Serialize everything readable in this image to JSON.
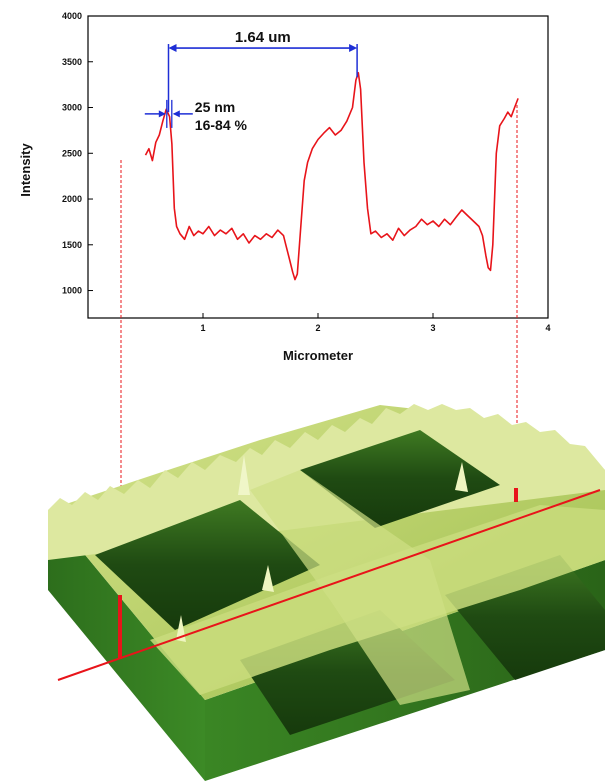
{
  "chart_data": {
    "type": "line",
    "xlabel": "Micrometer",
    "ylabel": "Intensity",
    "xlim": [
      0,
      4
    ],
    "ylim": [
      700,
      4000
    ],
    "x_ticks": [
      1,
      2,
      3,
      4
    ],
    "y_ticks": [
      1000,
      1500,
      2000,
      2500,
      3000,
      3500,
      4000
    ],
    "grid": false,
    "series": [
      {
        "color": "#e8141a",
        "points": [
          [
            0.5,
            2480
          ],
          [
            0.53,
            2550
          ],
          [
            0.56,
            2420
          ],
          [
            0.59,
            2620
          ],
          [
            0.62,
            2700
          ],
          [
            0.65,
            2850
          ],
          [
            0.68,
            2980
          ],
          [
            0.71,
            2900
          ],
          [
            0.73,
            2600
          ],
          [
            0.75,
            1900
          ],
          [
            0.77,
            1700
          ],
          [
            0.8,
            1620
          ],
          [
            0.84,
            1560
          ],
          [
            0.88,
            1700
          ],
          [
            0.92,
            1600
          ],
          [
            0.96,
            1650
          ],
          [
            1.0,
            1620
          ],
          [
            1.05,
            1700
          ],
          [
            1.1,
            1600
          ],
          [
            1.15,
            1660
          ],
          [
            1.2,
            1620
          ],
          [
            1.25,
            1680
          ],
          [
            1.3,
            1560
          ],
          [
            1.35,
            1620
          ],
          [
            1.4,
            1520
          ],
          [
            1.45,
            1600
          ],
          [
            1.5,
            1560
          ],
          [
            1.55,
            1620
          ],
          [
            1.6,
            1580
          ],
          [
            1.65,
            1660
          ],
          [
            1.7,
            1600
          ],
          [
            1.72,
            1500
          ],
          [
            1.75,
            1350
          ],
          [
            1.78,
            1200
          ],
          [
            1.8,
            1120
          ],
          [
            1.82,
            1180
          ],
          [
            1.85,
            1700
          ],
          [
            1.88,
            2200
          ],
          [
            1.91,
            2400
          ],
          [
            1.95,
            2550
          ],
          [
            2.0,
            2650
          ],
          [
            2.05,
            2720
          ],
          [
            2.1,
            2780
          ],
          [
            2.15,
            2700
          ],
          [
            2.2,
            2750
          ],
          [
            2.25,
            2850
          ],
          [
            2.3,
            3000
          ],
          [
            2.33,
            3300
          ],
          [
            2.35,
            3380
          ],
          [
            2.37,
            3200
          ],
          [
            2.4,
            2400
          ],
          [
            2.43,
            1900
          ],
          [
            2.46,
            1620
          ],
          [
            2.5,
            1650
          ],
          [
            2.55,
            1580
          ],
          [
            2.6,
            1620
          ],
          [
            2.65,
            1550
          ],
          [
            2.7,
            1680
          ],
          [
            2.75,
            1600
          ],
          [
            2.8,
            1660
          ],
          [
            2.85,
            1700
          ],
          [
            2.9,
            1780
          ],
          [
            2.95,
            1720
          ],
          [
            3.0,
            1760
          ],
          [
            3.05,
            1700
          ],
          [
            3.1,
            1780
          ],
          [
            3.15,
            1720
          ],
          [
            3.2,
            1800
          ],
          [
            3.25,
            1880
          ],
          [
            3.3,
            1820
          ],
          [
            3.35,
            1760
          ],
          [
            3.4,
            1700
          ],
          [
            3.43,
            1600
          ],
          [
            3.46,
            1380
          ],
          [
            3.48,
            1250
          ],
          [
            3.5,
            1220
          ],
          [
            3.52,
            1500
          ],
          [
            3.55,
            2500
          ],
          [
            3.58,
            2800
          ],
          [
            3.62,
            2880
          ],
          [
            3.65,
            2950
          ],
          [
            3.68,
            2900
          ],
          [
            3.71,
            3000
          ],
          [
            3.74,
            3100
          ]
        ]
      }
    ],
    "annotations": [
      {
        "text": "1.64 um",
        "x_from": 0.7,
        "x_to": 2.34,
        "y": 3650
      },
      {
        "text": "25 nm",
        "x_at": 0.72,
        "y": 2930
      },
      {
        "text": "16-84 %",
        "x_at": 0.72,
        "y": 2880
      }
    ]
  },
  "colors": {
    "trace": "#e8141a",
    "annotation_arrow": "#1e2fd6",
    "guide_line": "#e8141a",
    "surface_light": "#e8f0b0",
    "surface_dark": "#17380c",
    "base_side": "#2f7a1e"
  }
}
